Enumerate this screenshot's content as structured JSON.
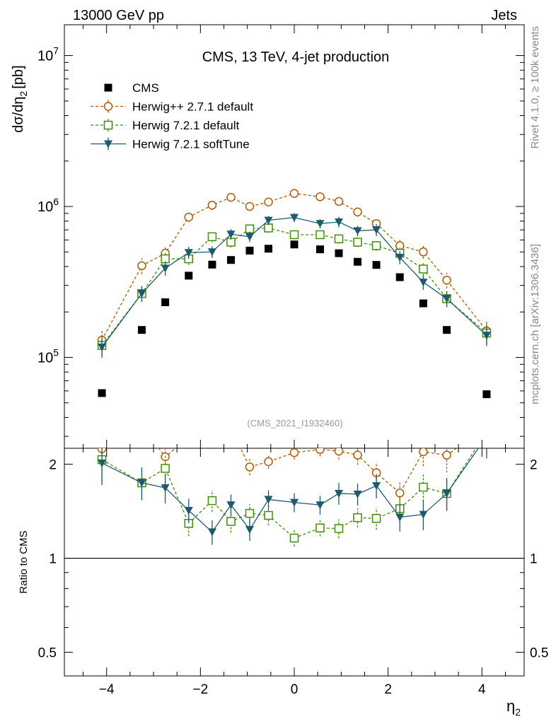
{
  "header": {
    "left": "13000 GeV pp",
    "right": "Jets"
  },
  "side_labels": {
    "rivet": "Rivet 4.1.0, ≥ 100k events",
    "mcplots": "mcplots.cern.ch [arXiv:1306.3436]"
  },
  "chart_data": {
    "type": "scatter",
    "title": "CMS, 13 TeV, 4-jet production",
    "watermark": "(CMS_2021_I1932460)",
    "xlabel": "η",
    "xlabel_sub": "2",
    "ylabel": "dσ/dη",
    "ylabel_sub": "2",
    "ylabel_unit": "[pb]",
    "ratio_ylabel": "Ratio to CMS",
    "xlim": [
      -4.9,
      4.9
    ],
    "ylim_log": [
      25000,
      16000000
    ],
    "ratio_ylim_log": [
      0.42,
      2.25
    ],
    "x_ticks": [
      -4,
      -2,
      0,
      2,
      4
    ],
    "x_tick_labels": [
      "−4",
      "−2",
      "0",
      "2",
      "4"
    ],
    "y_major_ticks": [
      100000,
      1000000,
      10000000
    ],
    "y_tick_mantissa": "10",
    "y_tick_exponents": [
      "5",
      "6",
      "7"
    ],
    "ratio_ticks": [
      0.5,
      1,
      2
    ],
    "ratio_tick_labels": [
      "0.5",
      "1",
      "2"
    ],
    "x": [
      -4.1,
      -3.25,
      -2.75,
      -2.25,
      -1.75,
      -1.35,
      -0.95,
      -0.55,
      0.0,
      0.55,
      0.95,
      1.35,
      1.75,
      2.25,
      2.75,
      3.25,
      4.1
    ],
    "series": [
      {
        "name": "CMS",
        "style": "data",
        "color": "#000000",
        "values": [
          58000,
          152000,
          232000,
          348000,
          412000,
          442000,
          510000,
          525000,
          560000,
          520000,
          490000,
          430000,
          410000,
          340000,
          228000,
          152000,
          57000
        ]
      },
      {
        "name": "Herwig++ 2.7.1 default",
        "style": "dashed-circle",
        "color": "#b35a00",
        "values": [
          130000,
          405000,
          490000,
          850000,
          1020000,
          1150000,
          1000000,
          1070000,
          1220000,
          1160000,
          1080000,
          920000,
          770000,
          550000,
          500000,
          325000,
          150000
        ],
        "errors": [
          0.15,
          0.12,
          0.1,
          0.07,
          0.07,
          0.06,
          0.06,
          0.05,
          0.05,
          0.05,
          0.06,
          0.07,
          0.08,
          0.09,
          0.1,
          0.12,
          0.15
        ]
      },
      {
        "name": "Herwig 7.2.1 default",
        "style": "dashed-square",
        "color": "#3f8f00",
        "values": [
          120000,
          265000,
          450000,
          450000,
          630000,
          580000,
          710000,
          720000,
          650000,
          650000,
          610000,
          580000,
          550000,
          490000,
          385000,
          245000,
          145000
        ],
        "errors": [
          0.15,
          0.12,
          0.1,
          0.09,
          0.08,
          0.08,
          0.07,
          0.07,
          0.06,
          0.06,
          0.07,
          0.07,
          0.08,
          0.09,
          0.1,
          0.12,
          0.15
        ]
      },
      {
        "name": "Herwig 7.2.1 softTune",
        "style": "solid-triangle",
        "color": "#1d5a6e",
        "values": [
          117000,
          265000,
          390000,
          495000,
          500000,
          655000,
          630000,
          810000,
          845000,
          770000,
          790000,
          690000,
          700000,
          460000,
          315000,
          245000,
          140000
        ],
        "errors": [
          0.15,
          0.12,
          0.11,
          0.09,
          0.09,
          0.08,
          0.08,
          0.07,
          0.07,
          0.07,
          0.08,
          0.08,
          0.09,
          0.1,
          0.11,
          0.12,
          0.15
        ]
      }
    ]
  }
}
